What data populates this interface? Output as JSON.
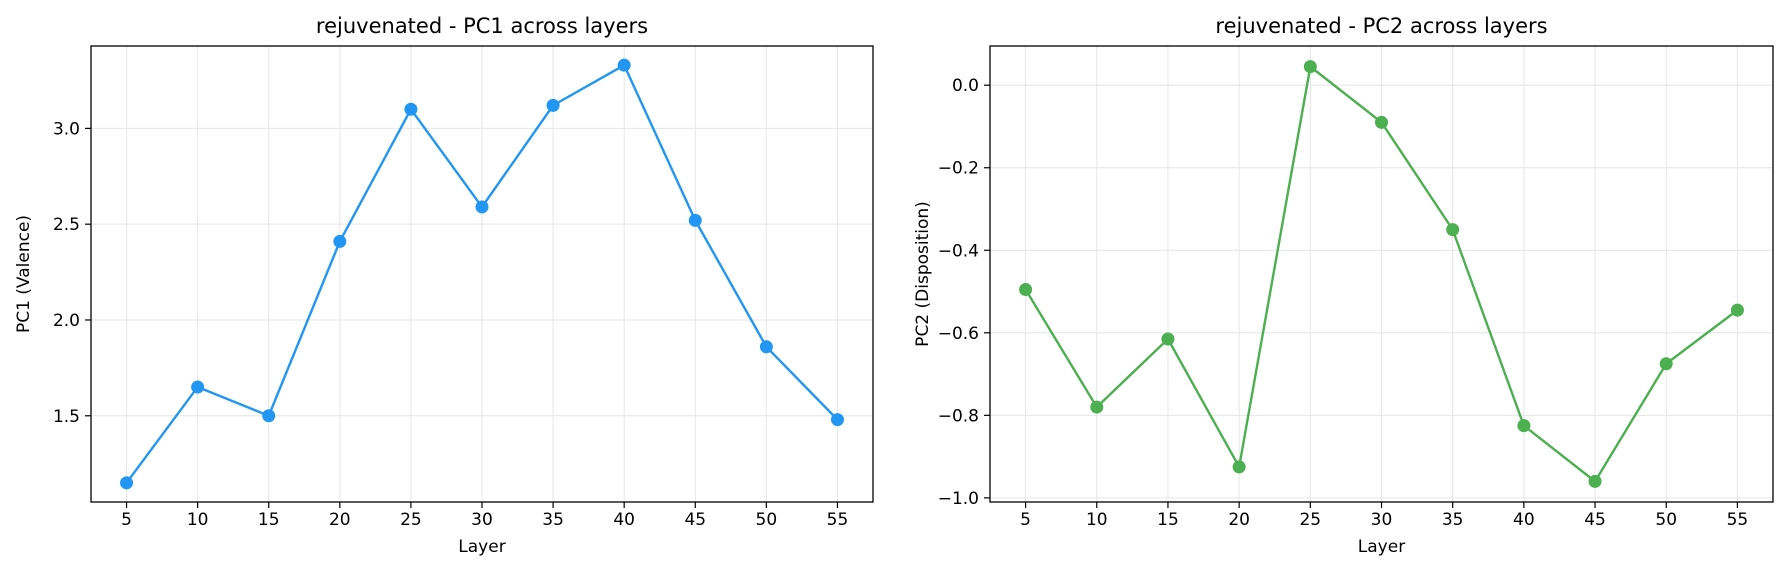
{
  "chart_data": [
    {
      "type": "line",
      "title": "rejuvenated - PC1 across layers",
      "xlabel": "Layer",
      "ylabel": "PC1 (Valence)",
      "x": [
        5,
        10,
        15,
        20,
        25,
        30,
        35,
        40,
        45,
        50,
        55
      ],
      "series": [
        {
          "values": [
            1.15,
            1.65,
            1.5,
            2.41,
            3.1,
            2.59,
            3.12,
            3.33,
            2.52,
            1.86,
            1.48
          ],
          "color": "#2196f3"
        }
      ],
      "xlim": [
        2.5,
        57.5
      ],
      "ylim": [
        1.05,
        3.43
      ],
      "xticks": [
        5,
        10,
        15,
        20,
        25,
        30,
        35,
        40,
        45,
        50,
        55
      ],
      "yticks": [
        1.5,
        2.0,
        2.5,
        3.0
      ],
      "ytick_labels": [
        "1.5",
        "2.0",
        "2.5",
        "3.0"
      ],
      "grid": true,
      "marker": "circle"
    },
    {
      "type": "line",
      "title": "rejuvenated - PC2 across layers",
      "xlabel": "Layer",
      "ylabel": "PC2 (Disposition)",
      "x": [
        5,
        10,
        15,
        20,
        25,
        30,
        35,
        40,
        45,
        50,
        55
      ],
      "series": [
        {
          "values": [
            -0.495,
            -0.78,
            -0.615,
            -0.925,
            0.045,
            -0.09,
            -0.35,
            -0.825,
            -0.96,
            -0.675,
            -0.545
          ],
          "color": "#4caf50"
        }
      ],
      "xlim": [
        2.5,
        57.5
      ],
      "ylim": [
        -1.01,
        0.095
      ],
      "xticks": [
        5,
        10,
        15,
        20,
        25,
        30,
        35,
        40,
        45,
        50,
        55
      ],
      "yticks": [
        -1.0,
        -0.8,
        -0.6,
        -0.4,
        -0.2,
        0.0
      ],
      "ytick_labels": [
        "−1.0",
        "−0.8",
        "−0.6",
        "−0.4",
        "−0.2",
        "0.0"
      ],
      "grid": true,
      "marker": "circle"
    }
  ]
}
